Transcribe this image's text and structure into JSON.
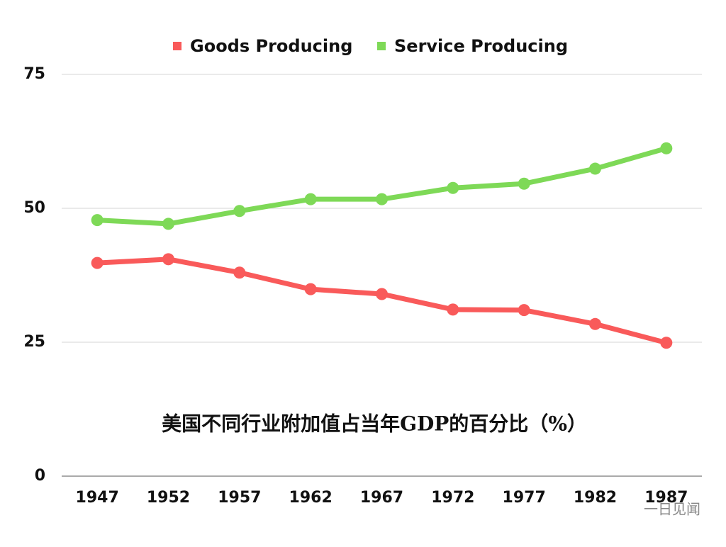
{
  "chart_data": {
    "type": "line",
    "title": "美国不同行业附加值占当年GDP的百分比（%）",
    "categories": [
      "1947",
      "1952",
      "1957",
      "1962",
      "1967",
      "1972",
      "1977",
      "1982",
      "1987"
    ],
    "series": [
      {
        "name": "Goods Producing",
        "color": "#f95a5a",
        "values": [
          39.8,
          40.5,
          38.0,
          34.9,
          34.0,
          31.1,
          31.0,
          28.4,
          24.9
        ]
      },
      {
        "name": "Service Producing",
        "color": "#7ed957",
        "values": [
          47.8,
          47.1,
          49.5,
          51.7,
          51.7,
          53.8,
          54.6,
          57.4,
          61.2
        ]
      }
    ],
    "ylim": [
      0,
      75
    ],
    "yticks": [
      0,
      25,
      50,
      75
    ],
    "grid": true,
    "legend": "top",
    "watermark": "一日见闻"
  }
}
